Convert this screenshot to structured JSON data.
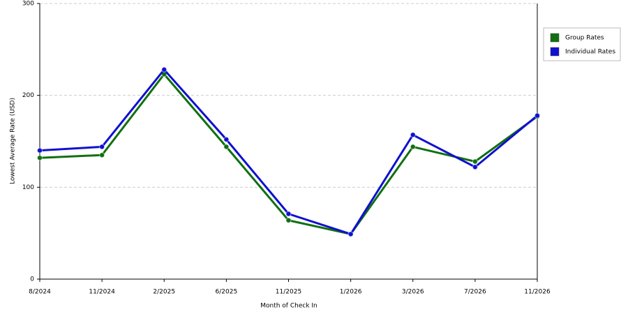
{
  "chart_data": {
    "type": "line",
    "x_label": "Month of Check In",
    "y_label": "Lowest Average Rate (USD)",
    "categories": [
      "8/2024",
      "11/2024",
      "2/2025",
      "6/2025",
      "11/2025",
      "1/2026",
      "3/2026",
      "7/2026",
      "11/2026"
    ],
    "series": [
      {
        "name": "Group Rates",
        "color": "#107010",
        "values": [
          132,
          135,
          223,
          144,
          64,
          49,
          144,
          128,
          177
        ]
      },
      {
        "name": "Individual Rates",
        "color": "#1010d0",
        "values": [
          140,
          144,
          228,
          152,
          71,
          49,
          157,
          122,
          178
        ]
      }
    ],
    "ylim": [
      0,
      300
    ],
    "yticks": [
      0,
      100,
      200,
      300
    ],
    "grid": true,
    "legend": "right"
  }
}
